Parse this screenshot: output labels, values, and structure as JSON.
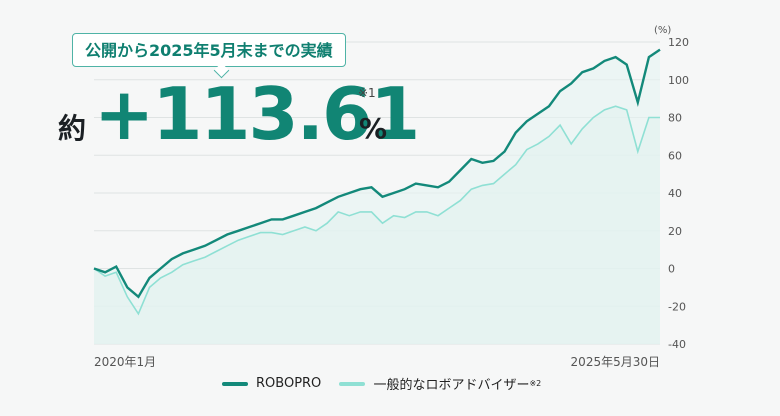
{
  "badge_text": "公開から2025年5月末までの実績",
  "return_prefix": "約",
  "return_value": "+113.61",
  "return_note": "※1",
  "return_unit": "%",
  "colors": {
    "robopro": "#13897a",
    "generic": "#8fe0d4",
    "grid": "#dfe3e3",
    "axis_text": "#555555"
  },
  "chart_data": {
    "type": "line",
    "y_unit_label": "(%)",
    "ylim": [
      -40,
      120
    ],
    "yticks": [
      120,
      100,
      80,
      60,
      40,
      20,
      0,
      -20,
      -40
    ],
    "x_start_label": "2020年1月",
    "x_end_label": "2025年5月30日",
    "grid": true,
    "legend_position": "bottom-center",
    "series": [
      {
        "name": "ROBOPRO",
        "values": [
          0,
          -2,
          1,
          -10,
          -15,
          -5,
          0,
          5,
          8,
          10,
          12,
          15,
          18,
          20,
          22,
          24,
          26,
          26,
          28,
          30,
          32,
          35,
          38,
          40,
          42,
          43,
          38,
          40,
          42,
          45,
          44,
          43,
          46,
          52,
          58,
          56,
          57,
          62,
          72,
          78,
          82,
          86,
          94,
          98,
          104,
          106,
          110,
          112,
          108,
          88,
          112,
          116
        ]
      },
      {
        "name": "一般的なロボアドバイザー",
        "note": "※2",
        "values": [
          0,
          -4,
          -2,
          -15,
          -24,
          -10,
          -5,
          -2,
          2,
          4,
          6,
          9,
          12,
          15,
          17,
          19,
          19,
          18,
          20,
          22,
          20,
          24,
          30,
          28,
          30,
          30,
          24,
          28,
          27,
          30,
          30,
          28,
          32,
          36,
          42,
          44,
          45,
          50,
          55,
          63,
          66,
          70,
          76,
          66,
          74,
          80,
          84,
          86,
          84,
          62,
          80,
          80
        ]
      }
    ]
  }
}
